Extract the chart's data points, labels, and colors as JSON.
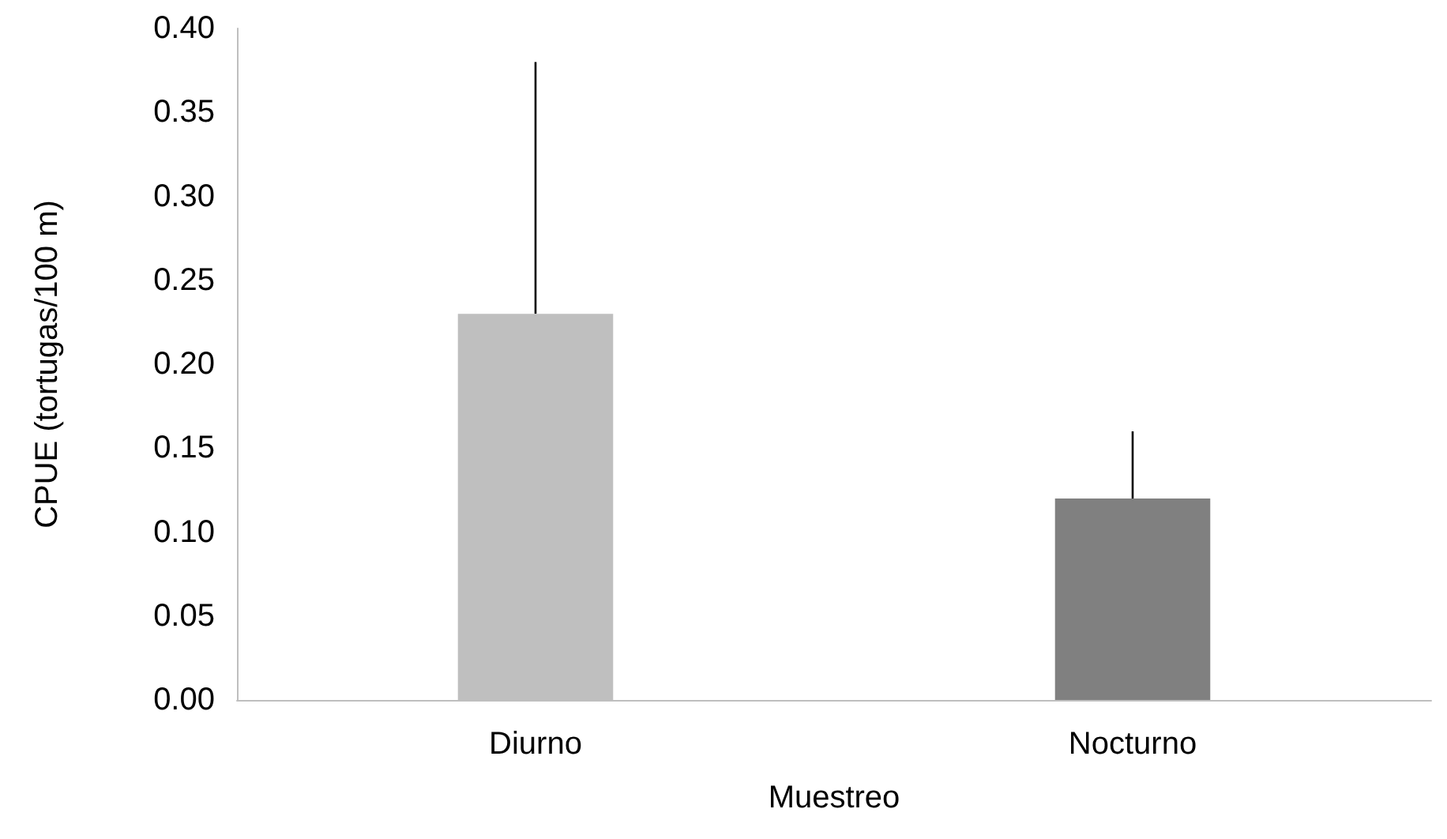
{
  "chart_data": {
    "type": "bar",
    "xlabel": "Muestreo",
    "ylabel": "CPUE (tortugas/100 m)",
    "categories": [
      "Diurno",
      "Nocturno"
    ],
    "values": [
      0.23,
      0.12
    ],
    "colors": [
      "#bfbfbf",
      "#808080"
    ],
    "errors": [
      [
        0.23,
        0.38
      ],
      [
        0.12,
        0.16
      ]
    ],
    "ylim": [
      0,
      0.4
    ],
    "yticks": [
      {
        "value": 0,
        "label": "0.00"
      },
      {
        "value": 0.05,
        "label": "0.05"
      },
      {
        "value": 0.1,
        "label": "0.10"
      },
      {
        "value": 0.15,
        "label": "0.15"
      },
      {
        "value": 0.2,
        "label": "0.20"
      },
      {
        "value": 0.25,
        "label": "0.25"
      },
      {
        "value": 0.3,
        "label": "0.30"
      },
      {
        "value": 0.35,
        "label": "0.35"
      },
      {
        "value": 0.4,
        "label": "0.40"
      }
    ],
    "grid": false
  }
}
